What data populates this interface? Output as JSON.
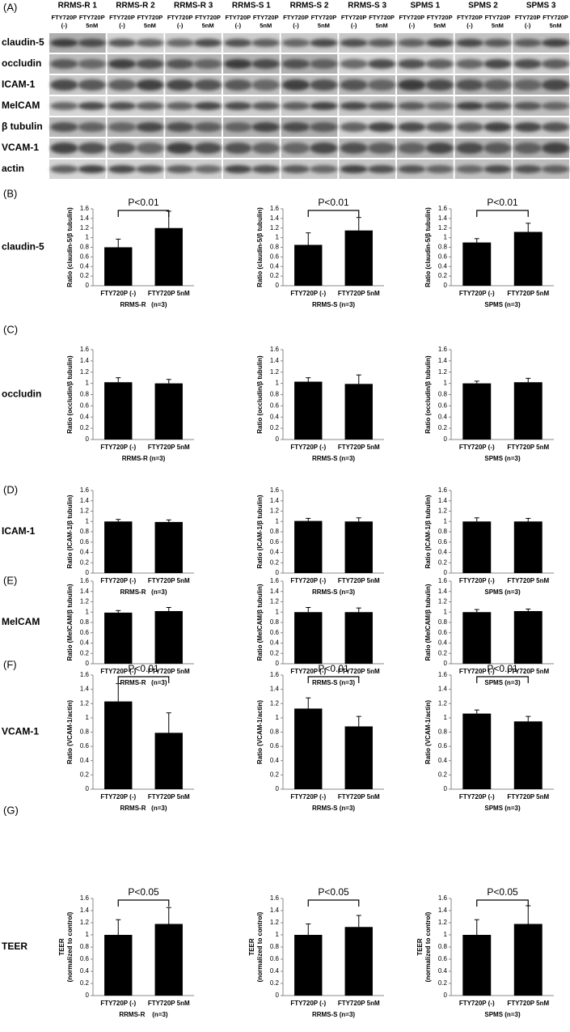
{
  "blot": {
    "letter": "(A)",
    "samples": [
      "RRMS-R 1",
      "RRMS-R 2",
      "RRMS-R 3",
      "RRMS-S 1",
      "RRMS-S 2",
      "RRMS-S 3",
      "SPMS 1",
      "SPMS 2",
      "SPMS 3"
    ],
    "conditions": [
      [
        "FTY720P",
        "(-)"
      ],
      [
        "FTY720P",
        "5nM"
      ]
    ],
    "markers": [
      "claudin-5",
      "occludin",
      "ICAM-1",
      "MelCAM",
      "β tubulin",
      "VCAM-1",
      "actin"
    ]
  },
  "panels": [
    {
      "letter": "(B)",
      "label": "claudin-5"
    },
    {
      "letter": "(C)",
      "label": "occludin"
    },
    {
      "letter": "(D)",
      "label": "ICAM-1"
    },
    {
      "letter": "(E)",
      "label": "MelCAM"
    },
    {
      "letter": "(F)",
      "label": "VCAM-1"
    },
    {
      "letter": "(G)",
      "label": "TEER"
    }
  ],
  "chart_data": [
    {
      "type": "bar",
      "ylabel": [
        "Ratio (claudin-5/β tubulin)"
      ],
      "xlabel": "RRMS-R   (n=3)",
      "categories": [
        "FTY720P (-)",
        "FTY720P 5nM"
      ],
      "values": [
        0.8,
        1.2
      ],
      "errors": [
        0.17,
        0.35
      ],
      "color": "#000000",
      "ylim": [
        0,
        1.6
      ],
      "yticks": [
        0,
        0.2,
        0.4,
        0.6,
        0.8,
        1,
        1.2,
        1.4,
        1.6
      ],
      "annotation": "P<0.01"
    },
    {
      "type": "bar",
      "ylabel": [
        "Ratio (claudin-5/β tubulin)"
      ],
      "xlabel": "RRMS-S (n=3)",
      "categories": [
        "FTY720P (-)",
        "FTY720P 5nM"
      ],
      "values": [
        0.85,
        1.15
      ],
      "errors": [
        0.25,
        0.27
      ],
      "color": "#000000",
      "ylim": [
        0,
        1.6
      ],
      "yticks": [
        0,
        0.2,
        0.4,
        0.6,
        0.8,
        1,
        1.2,
        1.4,
        1.6
      ],
      "annotation": "P<0.01"
    },
    {
      "type": "bar",
      "ylabel": [
        "Ratio (claudin-5/β tubulin)"
      ],
      "xlabel": "SPMS (n=3)",
      "categories": [
        "FTY720P (-)",
        "FTY720P 5nM"
      ],
      "values": [
        0.9,
        1.12
      ],
      "errors": [
        0.08,
        0.18
      ],
      "color": "#000000",
      "ylim": [
        0,
        1.6
      ],
      "yticks": [
        0,
        0.2,
        0.4,
        0.6,
        0.8,
        1,
        1.2,
        1.4,
        1.6
      ],
      "annotation": "P<0.01"
    },
    {
      "type": "bar",
      "ylabel": [
        "Ratio (occludin/β tubulin)"
      ],
      "xlabel": "RRMS-R (n=3)",
      "categories": [
        "FTY720P (-)",
        "FTY720P 5nM"
      ],
      "values": [
        1.02,
        1.0
      ],
      "errors": [
        0.08,
        0.07
      ],
      "color": "#000000",
      "ylim": [
        0,
        1.6
      ],
      "yticks": [
        0,
        0.2,
        0.4,
        0.6,
        0.8,
        1,
        1.2,
        1.4,
        1.6
      ]
    },
    {
      "type": "bar",
      "ylabel": [
        "Ratio (occludin/β tubulin)"
      ],
      "xlabel": "RRMS-S (n=3)",
      "categories": [
        "FTY720P (-)",
        "FTY720P 5nM"
      ],
      "values": [
        1.03,
        0.99
      ],
      "errors": [
        0.07,
        0.16
      ],
      "color": "#000000",
      "ylim": [
        0,
        1.6
      ],
      "yticks": [
        0,
        0.2,
        0.4,
        0.6,
        0.8,
        1,
        1.2,
        1.4,
        1.6
      ]
    },
    {
      "type": "bar",
      "ylabel": [
        "Ratio (occludin/β tubulin)"
      ],
      "xlabel": "SPMS (n=3)",
      "categories": [
        "FTY720P (-)",
        "FTY720P 5nM"
      ],
      "values": [
        1.0,
        1.02
      ],
      "errors": [
        0.04,
        0.07
      ],
      "color": "#000000",
      "ylim": [
        0,
        1.6
      ],
      "yticks": [
        0,
        0.2,
        0.4,
        0.6,
        0.8,
        1,
        1.2,
        1.4,
        1.6
      ]
    },
    {
      "type": "bar",
      "ylabel": [
        "Ratio (ICAM-1/β tubulin)"
      ],
      "xlabel": "RRMS-R   (n=3)",
      "categories": [
        "FTY720P (-)",
        "FTY720P 5nM"
      ],
      "values": [
        1.0,
        0.99
      ],
      "errors": [
        0.04,
        0.04
      ],
      "color": "#000000",
      "ylim": [
        0,
        1.6
      ],
      "yticks": [
        0,
        0.2,
        0.4,
        0.6,
        0.8,
        1,
        1.2,
        1.4,
        1.6
      ]
    },
    {
      "type": "bar",
      "ylabel": [
        "Ratio (ICAM-1/β tubulin)"
      ],
      "xlabel": "RRMS-S (n=3)",
      "categories": [
        "FTY720P (-)",
        "FTY720P 5nM"
      ],
      "values": [
        1.01,
        1.0
      ],
      "errors": [
        0.05,
        0.07
      ],
      "color": "#000000",
      "ylim": [
        0,
        1.6
      ],
      "yticks": [
        0,
        0.2,
        0.4,
        0.6,
        0.8,
        1,
        1.2,
        1.4,
        1.6
      ]
    },
    {
      "type": "bar",
      "ylabel": [
        "Ratio (ICAM-1/β tubulin)"
      ],
      "xlabel": "SPMS (n=3)",
      "categories": [
        "FTY720P (-)",
        "FTY720P 5nM"
      ],
      "values": [
        1.0,
        1.0
      ],
      "errors": [
        0.07,
        0.06
      ],
      "color": "#000000",
      "ylim": [
        0,
        1.6
      ],
      "yticks": [
        0,
        0.2,
        0.4,
        0.6,
        0.8,
        1,
        1.2,
        1.4,
        1.6
      ]
    },
    {
      "type": "bar",
      "ylabel": [
        "Ratio (MelCAM/β tubulin)"
      ],
      "xlabel": "RRMS-R   (n=3)",
      "categories": [
        "FTY720P (-)",
        "FTY720P 5nM"
      ],
      "values": [
        0.99,
        1.02
      ],
      "errors": [
        0.04,
        0.07
      ],
      "color": "#000000",
      "ylim": [
        0,
        1.6
      ],
      "yticks": [
        0,
        0.2,
        0.4,
        0.6,
        0.8,
        1,
        1.2,
        1.4,
        1.6
      ]
    },
    {
      "type": "bar",
      "ylabel": [
        "Ratio (MelCAM/β tubulin)"
      ],
      "xlabel": "RRMS-S (n=3)",
      "categories": [
        "FTY720P (-)",
        "FTY720P 5nM"
      ],
      "values": [
        1.0,
        1.0
      ],
      "errors": [
        0.09,
        0.08
      ],
      "color": "#000000",
      "ylim": [
        0,
        1.6
      ],
      "yticks": [
        0,
        0.2,
        0.4,
        0.6,
        0.8,
        1,
        1.2,
        1.4,
        1.6
      ]
    },
    {
      "type": "bar",
      "ylabel": [
        "Ratio (MelCAM/β tubulin)"
      ],
      "xlabel": "SPMS (n=3)",
      "categories": [
        "FTY720P (-)",
        "FTY720P 5nM"
      ],
      "values": [
        1.0,
        1.02
      ],
      "errors": [
        0.05,
        0.04
      ],
      "color": "#000000",
      "ylim": [
        0,
        1.6
      ],
      "yticks": [
        0,
        0.2,
        0.4,
        0.6,
        0.8,
        1,
        1.2,
        1.4,
        1.6
      ]
    },
    {
      "type": "bar",
      "ylabel": [
        "Ratio (VCAM-1/actin)"
      ],
      "xlabel": "RRMS-R   (n=3)",
      "categories": [
        "FTY720P (-)",
        "FTY720P 5nM"
      ],
      "values": [
        1.23,
        0.79
      ],
      "errors": [
        0.25,
        0.28
      ],
      "color": "#000000",
      "ylim": [
        0,
        1.6
      ],
      "yticks": [
        0,
        0.2,
        0.4,
        0.6,
        0.8,
        1,
        1.2,
        1.4,
        1.6
      ],
      "annotation": "P<0.01"
    },
    {
      "type": "bar",
      "ylabel": [
        "Ratio (VCAM-1/actin)"
      ],
      "xlabel": "RRMS-S (n=3)",
      "categories": [
        "FTY720P (-)",
        "FTY720P 5nM"
      ],
      "values": [
        1.13,
        0.88
      ],
      "errors": [
        0.15,
        0.14
      ],
      "color": "#000000",
      "ylim": [
        0,
        1.6
      ],
      "yticks": [
        0,
        0.2,
        0.4,
        0.6,
        0.8,
        1,
        1.2,
        1.4,
        1.6
      ],
      "annotation": "P<0.01"
    },
    {
      "type": "bar",
      "ylabel": [
        "Ratio (VCAM-1/actin)"
      ],
      "xlabel": "SPMS (n=3)",
      "categories": [
        "FTY720P (-)",
        "FTY720P 5nM"
      ],
      "values": [
        1.06,
        0.95
      ],
      "errors": [
        0.05,
        0.07
      ],
      "color": "#000000",
      "ylim": [
        0,
        1.6
      ],
      "yticks": [
        0,
        0.2,
        0.4,
        0.6,
        0.8,
        1,
        1.2,
        1.4,
        1.6
      ],
      "annotation": "P<0.01"
    },
    {
      "type": "bar",
      "ylabel": [
        "TEER",
        "(normalized to control)"
      ],
      "xlabel": "RRMS-R    (n=3)",
      "categories": [
        "FTY720P (-)",
        "FTY720P 5nM"
      ],
      "values": [
        1.0,
        1.18
      ],
      "errors": [
        0.25,
        0.27
      ],
      "color": "#000000",
      "ylim": [
        0,
        1.6
      ],
      "yticks": [
        0,
        0.2,
        0.4,
        0.6,
        0.8,
        1,
        1.2,
        1.4,
        1.6
      ],
      "annotation": "P<0.05"
    },
    {
      "type": "bar",
      "ylabel": [
        "TEER",
        "(normalized to control)"
      ],
      "xlabel": "RRMS-S (n=3)",
      "categories": [
        "FTY720P (-)",
        "FTY720P 5nM"
      ],
      "values": [
        1.0,
        1.13
      ],
      "errors": [
        0.18,
        0.19
      ],
      "color": "#000000",
      "ylim": [
        0,
        1.6
      ],
      "yticks": [
        0,
        0.2,
        0.4,
        0.6,
        0.8,
        1,
        1.2,
        1.4,
        1.6
      ],
      "annotation": "P<0.05"
    },
    {
      "type": "bar",
      "ylabel": [
        "TEER",
        "(normalized to control)"
      ],
      "xlabel": "SPMS (n=3)",
      "categories": [
        "FTY720P (-)",
        "FTY720P 5nM"
      ],
      "values": [
        1.0,
        1.18
      ],
      "errors": [
        0.25,
        0.3
      ],
      "color": "#000000",
      "ylim": [
        0,
        1.6
      ],
      "yticks": [
        0,
        0.2,
        0.4,
        0.6,
        0.8,
        1,
        1.2,
        1.4,
        1.6
      ],
      "annotation": "P<0.05"
    }
  ]
}
